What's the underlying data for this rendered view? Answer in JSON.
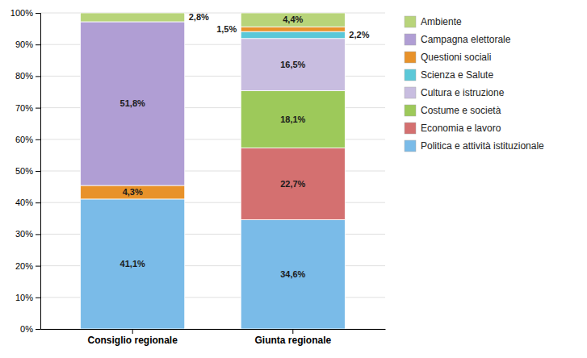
{
  "chart_data": {
    "type": "bar",
    "stacked": true,
    "categories": [
      "Consiglio regionale",
      "Giunta regionale"
    ],
    "series": [
      {
        "name": "Politica e attività istituzionale",
        "color": "#7abbe8",
        "values": [
          41.1,
          34.6
        ],
        "value_labels": [
          "41,1%",
          "34,6%"
        ]
      },
      {
        "name": "Economia e lavoro",
        "color": "#d47070",
        "values": [
          0.0,
          22.7
        ],
        "value_labels": [
          null,
          "22,7%"
        ]
      },
      {
        "name": "Costume e società",
        "color": "#9dc95a",
        "values": [
          0.0,
          18.1
        ],
        "value_labels": [
          null,
          "18,1%"
        ]
      },
      {
        "name": "Cultura e istruzione",
        "color": "#c8bde0",
        "values": [
          0.0,
          16.5
        ],
        "value_labels": [
          null,
          "16,5%"
        ]
      },
      {
        "name": "Scienza e Salute",
        "color": "#5bc8d8",
        "values": [
          0.0,
          2.2
        ],
        "value_labels": [
          null,
          "2,2%"
        ]
      },
      {
        "name": "Questioni sociali",
        "color": "#e8922a",
        "values": [
          4.3,
          1.5
        ],
        "value_labels": [
          "4,3%",
          "1,5%"
        ]
      },
      {
        "name": "Campagna elettorale",
        "color": "#b09ed4",
        "values": [
          51.8,
          0.0
        ],
        "value_labels": [
          "51,8%",
          null
        ]
      },
      {
        "name": "Ambiente",
        "color": "#b8d47a",
        "values": [
          2.8,
          4.4
        ],
        "value_labels": [
          "2,8%",
          "4,4%"
        ]
      }
    ],
    "ylim": [
      0,
      100
    ],
    "yticks": [
      {
        "value": 0,
        "label": "0%"
      },
      {
        "value": 10,
        "label": "10%"
      },
      {
        "value": 20,
        "label": "20%"
      },
      {
        "value": 30,
        "label": "30%"
      },
      {
        "value": 40,
        "label": "40%"
      },
      {
        "value": 50,
        "label": "50%"
      },
      {
        "value": 60,
        "label": "60%"
      },
      {
        "value": 70,
        "label": "70%"
      },
      {
        "value": 80,
        "label": "80%"
      },
      {
        "value": 90,
        "label": "90%"
      },
      {
        "value": 100,
        "label": "100%"
      }
    ],
    "grid": true,
    "legend": "right",
    "data_labels": true
  }
}
